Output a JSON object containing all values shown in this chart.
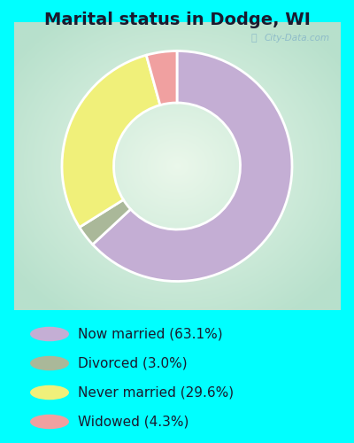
{
  "title": "Marital status in Dodge, WI",
  "slices": [
    63.1,
    3.0,
    29.6,
    4.3
  ],
  "labels": [
    "Now married (63.1%)",
    "Divorced (3.0%)",
    "Never married (29.6%)",
    "Widowed (4.3%)"
  ],
  "colors": [
    "#c4aed4",
    "#aab899",
    "#f0f07a",
    "#f0a0a0"
  ],
  "outer_bg": "#00ffff",
  "chart_bg_color": "#c8e8d8",
  "title_fontsize": 14,
  "legend_fontsize": 11,
  "watermark": "City-Data.com"
}
